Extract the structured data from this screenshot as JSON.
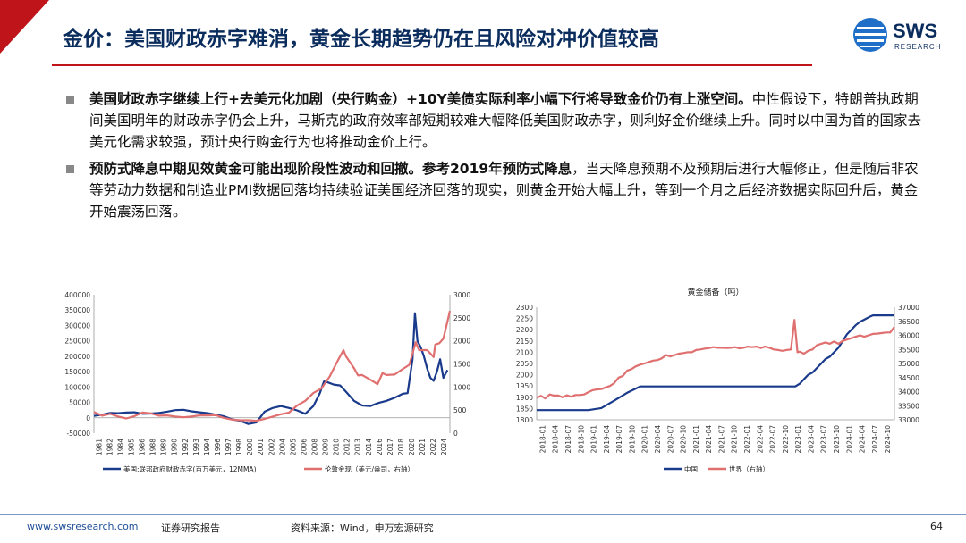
{
  "header": {
    "title": "金价：美国财政赤字难消，黄金长期趋势仍在且风险对冲价值较高",
    "logo_text": "SWS",
    "logo_sub": "RESEARCH"
  },
  "bullets": [
    {
      "bold": "美国财政赤字继续上行+去美元化加剧（央行购金）+10Y美债实际利率小幅下行将导致金价仍有上涨空间。",
      "text": "中性假设下，特朗普执政期间美国明年的财政赤字仍会上升，马斯克的政府效率部短期较难大幅降低美国财政赤字，则利好金价继续上升。同时以中国为首的国家去美元化需求较强，预计央行购金行为也将推动金价上行。"
    },
    {
      "bold": "预防式降息中期见效黄金可能出现阶段性波动和回撤。参考2019年预防式降息",
      "text": "，当天降息预期不及预期后进行大幅修正，但是随后非农等劳动力数据和制造业PMI数据回落均持续验证美国经济回落的现实，则黄金开始大幅上升，等到一个月之后经济数据实际回升后，黄金开始震荡回落。"
    }
  ],
  "chart_data": [
    {
      "type": "line",
      "title": "",
      "x_ticks": [
        "1981",
        "1982",
        "1984",
        "1985",
        "1986",
        "1988",
        "1989",
        "1990",
        "1992",
        "1993",
        "1994",
        "1996",
        "1997",
        "1998",
        "2000",
        "2001",
        "2002",
        "2004",
        "2005",
        "2006",
        "2008",
        "2009",
        "2010",
        "2012",
        "2013",
        "2014",
        "2016",
        "2017",
        "2018",
        "2020",
        "2021",
        "2022",
        "2024"
      ],
      "xlim": [
        1981,
        2024.8
      ],
      "ylim_left": [
        -50000,
        400000
      ],
      "yticks_left": [
        "400000",
        "350000",
        "300000",
        "250000",
        "200000",
        "150000",
        "100000",
        "50000",
        "0",
        "-50000"
      ],
      "ylim_right": [
        0,
        3000
      ],
      "yticks_right": [
        "3000",
        "2500",
        "2000",
        "1500",
        "1000",
        "500",
        "0"
      ],
      "series": [
        {
          "name": "美国:联邦政府财政赤字(百万美元，12MMA)",
          "color": "#1a3a8c",
          "axis": "left",
          "x": [
            1981,
            1982,
            1983,
            1984,
            1985,
            1986,
            1987,
            1988,
            1989,
            1990,
            1991,
            1992,
            1993,
            1994,
            1995,
            1996,
            1997,
            1998,
            1999,
            2000,
            2001,
            2002,
            2003,
            2004,
            2005,
            2006,
            2007,
            2008,
            2008.8,
            2009.3,
            2009.8,
            2010.5,
            2011.3,
            2012,
            2013,
            2014,
            2015,
            2016,
            2017,
            2018,
            2019,
            2019.6,
            2020.2,
            2020.5,
            2020.8,
            2021.2,
            2021.6,
            2022,
            2022.4,
            2022.8,
            2023.2,
            2023.6,
            2024,
            2024.5
          ],
          "y": [
            6000,
            10000,
            16000,
            15000,
            17000,
            18000,
            13000,
            14000,
            16000,
            20000,
            25000,
            26000,
            21000,
            18000,
            15000,
            10000,
            5000,
            -5000,
            -10000,
            -20000,
            -15000,
            20000,
            32000,
            38000,
            32000,
            24000,
            13000,
            38000,
            80000,
            118000,
            115000,
            108000,
            105000,
            85000,
            55000,
            40000,
            38000,
            48000,
            55000,
            65000,
            78000,
            80000,
            190000,
            340000,
            250000,
            230000,
            200000,
            160000,
            130000,
            120000,
            150000,
            190000,
            130000,
            155000
          ]
        },
        {
          "name": "伦敦金现（美元/盎司，右轴）",
          "color": "#e07070",
          "axis": "right",
          "x": [
            1981,
            1982,
            1983,
            1984,
            1985,
            1986,
            1987,
            1988,
            1989,
            1990,
            1991,
            1992,
            1993,
            1994,
            1995,
            1996,
            1997,
            1998,
            1999,
            2000,
            2001,
            2002,
            2003,
            2004,
            2005,
            2006,
            2007,
            2008,
            2009,
            2010,
            2011,
            2011.7,
            2012,
            2013,
            2013.5,
            2014,
            2015,
            2015.9,
            2016.5,
            2017,
            2018,
            2019,
            2019.8,
            2020.6,
            2021,
            2022,
            2022.8,
            2023,
            2023.5,
            2024,
            2024.4,
            2024.8
          ],
          "y": [
            460,
            380,
            420,
            360,
            320,
            370,
            450,
            430,
            380,
            385,
            360,
            345,
            360,
            385,
            385,
            390,
            330,
            295,
            280,
            280,
            270,
            310,
            360,
            410,
            445,
            600,
            700,
            870,
            970,
            1225,
            1570,
            1800,
            1670,
            1410,
            1250,
            1260,
            1160,
            1060,
            1300,
            1260,
            1270,
            1390,
            1480,
            1970,
            1800,
            1800,
            1650,
            1920,
            1950,
            2050,
            2350,
            2650
          ]
        }
      ]
    },
    {
      "type": "line",
      "title": "黄金储备（吨）",
      "x_ticks": [
        "2018-01",
        "2018-04",
        "2018-07",
        "2018-10",
        "2019-01",
        "2019-04",
        "2019-07",
        "2019-10",
        "2020-01",
        "2020-04",
        "2020-07",
        "2020-10",
        "2021-01",
        "2021-04",
        "2021-07",
        "2021-10",
        "2022-01",
        "2022-04",
        "2022-07",
        "2022-10",
        "2023-01",
        "2023-04",
        "2023-07",
        "2023-10",
        "2024-01",
        "2024-04",
        "2024-07",
        "2024-10"
      ],
      "xlim": [
        0,
        83
      ],
      "ylim_left": [
        1800,
        2300
      ],
      "yticks_left": [
        "2300",
        "2250",
        "2200",
        "2150",
        "2100",
        "2050",
        "2000",
        "1950",
        "1900",
        "1850",
        "1800"
      ],
      "ylim_right": [
        33000,
        37000
      ],
      "yticks_right": [
        "37000",
        "36500",
        "36000",
        "35500",
        "35000",
        "34500",
        "34000",
        "33500",
        "33000"
      ],
      "series": [
        {
          "name": "中国",
          "color": "#1a3a8c",
          "axis": "left",
          "x": [
            0,
            6,
            9,
            12,
            15,
            18,
            21,
            24,
            27,
            30,
            33,
            36,
            39,
            42,
            45,
            48,
            51,
            54,
            57,
            59,
            60,
            61,
            62,
            63,
            64,
            65,
            66,
            67,
            68,
            69,
            70,
            71,
            72,
            73,
            74,
            75,
            76,
            77,
            78,
            80,
            83
          ],
          "y": [
            1843,
            1843,
            1843,
            1843,
            1852,
            1885,
            1920,
            1948,
            1948,
            1948,
            1948,
            1948,
            1948,
            1948,
            1948,
            1948,
            1948,
            1948,
            1948,
            1948,
            1948,
            1960,
            1980,
            2000,
            2010,
            2030,
            2050,
            2070,
            2080,
            2100,
            2120,
            2150,
            2180,
            2200,
            2220,
            2235,
            2245,
            2255,
            2264,
            2264,
            2264
          ]
        },
        {
          "name": "世界（右轴）",
          "color": "#e07070",
          "axis": "right",
          "x": [
            0,
            1,
            2,
            3,
            4,
            5,
            6,
            7,
            8,
            9,
            10,
            11,
            12,
            13,
            14,
            15,
            16,
            17,
            18,
            19,
            20,
            21,
            22,
            23,
            24,
            25,
            26,
            27,
            28,
            29,
            30,
            31,
            32,
            33,
            34,
            35,
            36,
            37,
            38,
            39,
            40,
            41,
            42,
            43,
            44,
            45,
            46,
            47,
            48,
            49,
            50,
            51,
            52,
            53,
            54,
            55,
            56,
            57,
            58,
            59,
            59.8,
            60.5,
            61,
            62,
            63,
            64,
            65,
            66,
            67,
            68,
            69,
            70,
            71,
            72,
            73,
            74,
            75,
            76,
            77,
            78,
            79,
            80,
            81,
            82,
            83
          ],
          "y": [
            33780,
            33850,
            33760,
            33900,
            33860,
            33860,
            33800,
            33870,
            33820,
            33880,
            33880,
            33900,
            33980,
            34050,
            34080,
            34090,
            34150,
            34200,
            34300,
            34500,
            34560,
            34750,
            34800,
            34900,
            34960,
            35000,
            35050,
            35100,
            35120,
            35180,
            35300,
            35250,
            35300,
            35350,
            35370,
            35400,
            35400,
            35480,
            35500,
            35530,
            35550,
            35580,
            35560,
            35560,
            35550,
            35560,
            35580,
            35540,
            35560,
            35600,
            35580,
            35600,
            35550,
            35600,
            35560,
            35500,
            35480,
            35450,
            35480,
            35500,
            36550,
            35400,
            35420,
            35350,
            35450,
            35500,
            35650,
            35700,
            35750,
            35700,
            35780,
            35700,
            35800,
            35850,
            35900,
            35950,
            36000,
            35950,
            36000,
            36050,
            36060,
            36080,
            36100,
            36100,
            36300
          ]
        }
      ]
    }
  ],
  "footer": {
    "website": "www.swsresearch.com",
    "doc_type": "证券研究报告",
    "source": "资料来源：Wind，申万宏源研究",
    "page": "64"
  }
}
